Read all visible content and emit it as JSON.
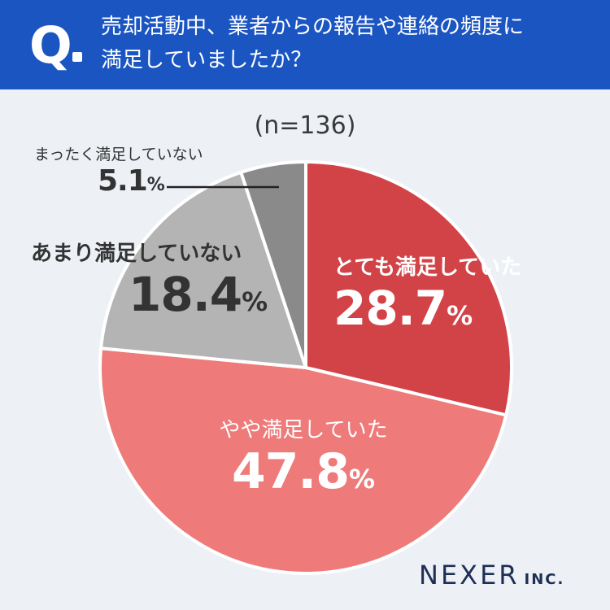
{
  "header": {
    "q_mark": "Q",
    "question_line1": "売却活動中、業者からの報告や連絡の頻度に",
    "question_line2": "満足していましたか？"
  },
  "sample_size": "(n=136)",
  "chart_data": {
    "type": "pie",
    "categories": [
      "とても満足していた",
      "やや満足していた",
      "あまり満足していない",
      "まったく満足していない"
    ],
    "values": [
      28.7,
      47.8,
      18.4,
      5.1
    ],
    "colors": [
      "#d24347",
      "#ee7a7a",
      "#b4b4b4",
      "#8a8a8a"
    ],
    "unit": "%",
    "start_angle_deg": 0,
    "direction": "clockwise"
  },
  "labels": {
    "very_satisfied": {
      "name": "とても満足していた",
      "value": "28.7",
      "unit": "%"
    },
    "somewhat_satisfied": {
      "name": "やや満足していた",
      "value": "47.8",
      "unit": "%"
    },
    "not_very_satisfied": {
      "name": "あまり満足していない",
      "value": "18.4",
      "unit": "%"
    },
    "not_at_all_satisfied": {
      "name": "まったく満足していない",
      "value": "5.1",
      "unit": "%"
    }
  },
  "logo": {
    "main": "NEXER",
    "sub": "INC."
  }
}
